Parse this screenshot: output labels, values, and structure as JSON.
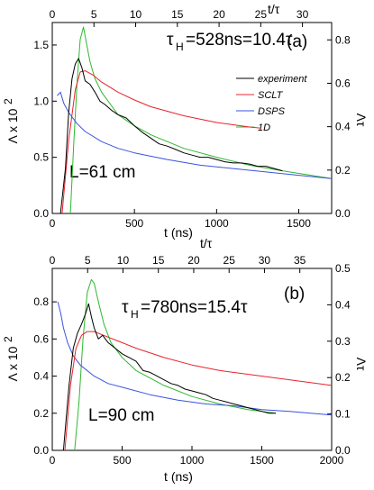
{
  "chart_data": [
    {
      "type": "line",
      "panel_label": "(a)",
      "annotation_main": "τ",
      "annotation_sub": "H",
      "annotation_rest": "=528ns=10.4τ",
      "length_label": "L=61 cm",
      "xlabel": "t (ns)",
      "xlim": [
        0,
        1700
      ],
      "xticks": [
        0,
        500,
        1000,
        1500
      ],
      "top_xlabel": "t/τ",
      "top_xlim": [
        0,
        33.5
      ],
      "top_xticks": [
        0,
        5,
        10,
        15,
        20,
        25,
        30
      ],
      "ylabel_left": "Λ x 10",
      "ylabel_left_sup": "2",
      "ylim": [
        0,
        1.7
      ],
      "yticks": [
        0.0,
        0.5,
        1.0,
        1.5
      ],
      "ylabel_right": "Λτ",
      "y2lim": [
        0,
        0.88
      ],
      "y2ticks": [
        0.0,
        0.2,
        0.4,
        0.6,
        0.8
      ],
      "legend": [
        "experiment",
        "SCLT",
        "DSPS",
        "1D"
      ],
      "colors": {
        "experiment": "#000000",
        "SCLT": "#e8232b",
        "DSPS": "#3a52e0",
        "1D": "#2fb82f"
      },
      "series": [
        {
          "name": "experiment",
          "x": [
            50,
            80,
            100,
            120,
            140,
            160,
            180,
            200,
            230,
            260,
            290,
            320,
            360,
            400,
            450,
            500,
            550,
            600,
            650,
            700,
            750,
            800,
            850,
            900,
            950,
            1000,
            1050,
            1100,
            1150,
            1200,
            1250,
            1300,
            1350,
            1400
          ],
          "y": [
            0.0,
            0.4,
            0.9,
            1.2,
            1.33,
            1.38,
            1.3,
            1.18,
            1.15,
            1.08,
            1.0,
            0.97,
            0.92,
            0.88,
            0.85,
            0.78,
            0.72,
            0.67,
            0.62,
            0.6,
            0.57,
            0.54,
            0.52,
            0.5,
            0.5,
            0.48,
            0.46,
            0.45,
            0.45,
            0.44,
            0.42,
            0.42,
            0.4,
            0.38
          ]
        },
        {
          "name": "SCLT",
          "x": [
            60,
            100,
            140,
            170,
            200,
            250,
            300,
            400,
            500,
            600,
            700,
            800,
            900,
            1000,
            1100,
            1200,
            1270
          ],
          "y": [
            0.0,
            0.65,
            1.1,
            1.26,
            1.27,
            1.23,
            1.17,
            1.08,
            1.01,
            0.95,
            0.91,
            0.87,
            0.84,
            0.81,
            0.79,
            0.77,
            0.76
          ]
        },
        {
          "name": "DSPS",
          "x": [
            30,
            50,
            70,
            100,
            150,
            200,
            300,
            400,
            500,
            700,
            900,
            1100,
            1300,
            1500,
            1700
          ],
          "y": [
            1.05,
            1.08,
            0.98,
            0.9,
            0.8,
            0.73,
            0.64,
            0.58,
            0.54,
            0.48,
            0.43,
            0.4,
            0.37,
            0.34,
            0.31
          ]
        },
        {
          "name": "1D",
          "x": [
            110,
            130,
            150,
            170,
            190,
            210,
            230,
            260,
            300,
            400,
            500,
            600,
            800,
            1000,
            1200,
            1400,
            1700
          ],
          "y": [
            0.0,
            0.6,
            1.15,
            1.55,
            1.66,
            1.5,
            1.35,
            1.2,
            1.08,
            0.88,
            0.78,
            0.7,
            0.58,
            0.5,
            0.43,
            0.38,
            0.31
          ]
        }
      ]
    },
    {
      "type": "line",
      "panel_label": "(b)",
      "annotation_main": "τ",
      "annotation_sub": "H",
      "annotation_rest": "=780ns=15.4τ",
      "length_label": "L=90 cm",
      "xlabel": "t (ns)",
      "xlim": [
        0,
        2000
      ],
      "xticks": [
        0,
        500,
        1000,
        1500,
        2000
      ],
      "top_xlabel": "t/τ",
      "top_xlim": [
        0,
        39.5
      ],
      "top_xticks": [
        0,
        5,
        10,
        15,
        20,
        25,
        30,
        35
      ],
      "ylabel_left": "Λ x 10",
      "ylabel_left_sup": "2",
      "ylim": [
        0,
        0.98
      ],
      "yticks": [
        0.0,
        0.2,
        0.4,
        0.6,
        0.8
      ],
      "ylabel_right": "Λτ",
      "y2lim": [
        0,
        0.5
      ],
      "y2ticks": [
        0.0,
        0.1,
        0.2,
        0.3,
        0.4,
        0.5
      ],
      "series": [
        {
          "name": "experiment",
          "x": [
            80,
            120,
            150,
            180,
            210,
            240,
            260,
            280,
            300,
            330,
            360,
            400,
            450,
            500,
            550,
            600,
            650,
            700,
            750,
            800,
            850,
            900,
            950,
            1000,
            1050,
            1100,
            1150,
            1200,
            1250,
            1300,
            1350,
            1400,
            1450,
            1500,
            1550,
            1600
          ],
          "y": [
            0.0,
            0.35,
            0.55,
            0.63,
            0.68,
            0.74,
            0.79,
            0.72,
            0.66,
            0.6,
            0.62,
            0.58,
            0.55,
            0.52,
            0.5,
            0.48,
            0.43,
            0.42,
            0.4,
            0.38,
            0.36,
            0.35,
            0.33,
            0.32,
            0.31,
            0.3,
            0.28,
            0.27,
            0.26,
            0.25,
            0.24,
            0.23,
            0.22,
            0.21,
            0.2,
            0.2
          ]
        },
        {
          "name": "SCLT",
          "x": [
            90,
            130,
            170,
            210,
            250,
            300,
            400,
            500,
            600,
            800,
            1000,
            1200,
            1400,
            1600,
            1800,
            2000
          ],
          "y": [
            0.0,
            0.35,
            0.55,
            0.62,
            0.64,
            0.64,
            0.61,
            0.58,
            0.55,
            0.5,
            0.46,
            0.43,
            0.41,
            0.39,
            0.37,
            0.35
          ]
        },
        {
          "name": "DSPS",
          "x": [
            40,
            60,
            80,
            110,
            150,
            200,
            300,
            400,
            500,
            700,
            900,
            1100,
            1300,
            1500,
            1700,
            2000
          ],
          "y": [
            0.8,
            0.74,
            0.66,
            0.58,
            0.51,
            0.46,
            0.4,
            0.36,
            0.34,
            0.3,
            0.27,
            0.25,
            0.24,
            0.22,
            0.21,
            0.19
          ]
        },
        {
          "name": "1D",
          "x": [
            160,
            190,
            220,
            250,
            280,
            300,
            330,
            370,
            420,
            500,
            600,
            800,
            1000,
            1200,
            1400,
            1600
          ],
          "y": [
            0.0,
            0.25,
            0.6,
            0.85,
            0.92,
            0.9,
            0.8,
            0.68,
            0.58,
            0.5,
            0.43,
            0.35,
            0.29,
            0.25,
            0.22,
            0.2
          ]
        }
      ]
    }
  ]
}
